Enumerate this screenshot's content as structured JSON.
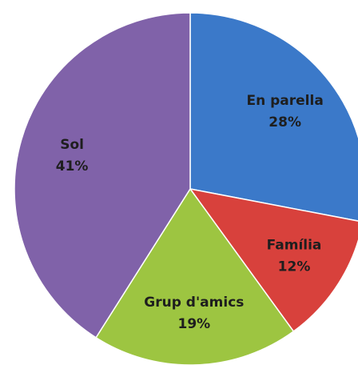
{
  "chart_data": {
    "type": "pie",
    "categories": [
      "En parella",
      "Família",
      "Grup d'amics",
      "Sol"
    ],
    "values": [
      28,
      12,
      19,
      41
    ],
    "value_labels": [
      "28%",
      "12%",
      "19%",
      "41%"
    ],
    "colors": [
      "#3b79c9",
      "#d8413c",
      "#9dc541",
      "#8062a9"
    ]
  }
}
